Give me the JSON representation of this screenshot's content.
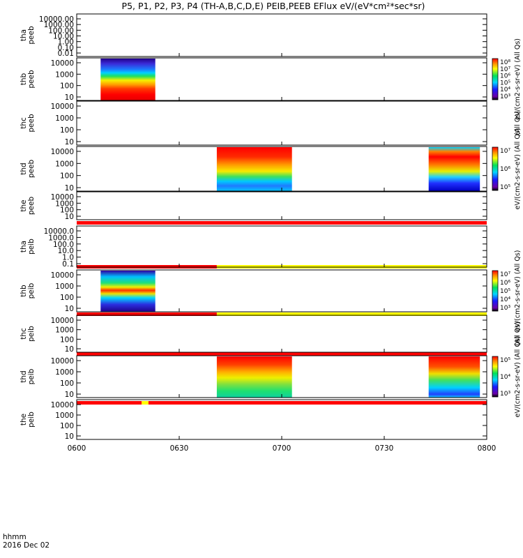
{
  "title": "P5, P1, P2, P3, P4 (TH-A,B,C,D,E) PEIB,PEEB EFlux eV/(eV*cm²*sec*sr)",
  "footer": {
    "time_label": "hhmm",
    "date_label": "2016 Dec 02"
  },
  "x_ticks": [
    "0600",
    "0630",
    "0700",
    "0730",
    "0800"
  ],
  "chart_data": {
    "type": "heatmap",
    "title": "P5, P1, P2, P3, P4 (TH-A,B,C,D,E) PEIB,PEEB EFlux eV/(eV*cm²*sec*sr)",
    "x_range": [
      "06:00",
      "08:00"
    ],
    "x_ticks": [
      "0600",
      "0630",
      "0700",
      "0730",
      "0800"
    ],
    "panels": [
      {
        "id": "tha_peeb",
        "label": [
          "tha",
          "peeb"
        ],
        "y_log": true,
        "y_range": [
          0.01,
          30000
        ],
        "y_ticks": [
          "10000.00",
          "1000.00",
          "100.00",
          "10.00",
          "1.00",
          "0.10",
          "0.01"
        ],
        "data_blocks": []
      },
      {
        "id": "thb_peeb",
        "label": [
          "thb",
          "peeb"
        ],
        "y_log": true,
        "y_range": [
          7,
          30000
        ],
        "y_ticks": [
          "10000",
          "1000",
          "100",
          "10"
        ],
        "data_blocks": [
          {
            "start": "06:07",
            "end": "06:23",
            "profile": "thb"
          }
        ],
        "colorbar": {
          "ticks": [
            "10⁸",
            "10⁷",
            "10⁶",
            "10⁵",
            "10⁴",
            "10³"
          ],
          "label": "eV/(cm2-s-sr-eV) (All Qs)"
        }
      },
      {
        "id": "thc_peeb",
        "label": [
          "thc",
          "peeb"
        ],
        "y_log": true,
        "y_range": [
          7,
          30000
        ],
        "y_ticks": [
          "10000",
          "1000",
          "100",
          "10"
        ],
        "data_blocks": [],
        "bar_label": "(All Qs)"
      },
      {
        "id": "thd_peeb",
        "label": [
          "thd",
          "peeb"
        ],
        "y_log": true,
        "y_range": [
          5,
          30000
        ],
        "y_ticks": [
          "10000",
          "1000",
          "100",
          "10"
        ],
        "data_blocks": [
          {
            "start": "06:41",
            "end": "07:03",
            "profile": "thd"
          },
          {
            "start": "07:43",
            "end": "07:58",
            "profile": "thd2"
          }
        ],
        "colorbar": {
          "ticks": [
            "10⁷",
            "10⁶",
            "10⁵"
          ],
          "label": "eV/(cm2-s-sr-eV) (All Qs)"
        }
      },
      {
        "id": "the_peeb",
        "label": [
          "the",
          "peeb"
        ],
        "y_log": true,
        "y_range": [
          5,
          30000
        ],
        "y_ticks": [
          "10000",
          "1000",
          "100",
          "10"
        ],
        "data_blocks": [],
        "status_bar": {
          "segments": [
            {
              "start": "06:00",
              "end": "08:00",
              "color": "#ff0000"
            }
          ]
        }
      },
      {
        "id": "tha_peib",
        "label": [
          "tha",
          "peib"
        ],
        "y_log": true,
        "y_range": [
          0.1,
          30000
        ],
        "y_ticks": [
          "10000.0",
          "1000.0",
          "100.0",
          "10.0",
          "1.0",
          "0.1"
        ],
        "data_blocks": [],
        "status_bar": {
          "segments": [
            {
              "start": "06:00",
              "end": "06:41",
              "color": "#ff0000"
            },
            {
              "start": "06:41",
              "end": "08:00",
              "color": "#ffff00"
            }
          ]
        }
      },
      {
        "id": "thb_peib",
        "label": [
          "thb",
          "peib"
        ],
        "y_log": true,
        "y_range": [
          5,
          30000
        ],
        "y_ticks": [
          "10000",
          "1000",
          "100",
          "10"
        ],
        "data_blocks": [
          {
            "start": "06:07",
            "end": "06:23",
            "profile": "thbi"
          }
        ],
        "colorbar": {
          "ticks": [
            "10⁷",
            "10⁶",
            "10⁵",
            "10⁴",
            "10³"
          ],
          "label": "eV/(cm2-s-sr-eV) (All Qs)"
        },
        "status_bar": {
          "segments": [
            {
              "start": "06:00",
              "end": "06:41",
              "color": "#ff0000"
            },
            {
              "start": "06:41",
              "end": "08:00",
              "color": "#ffff00"
            }
          ]
        }
      },
      {
        "id": "thc_peib",
        "label": [
          "thc",
          "peib"
        ],
        "y_log": true,
        "y_range": [
          5,
          30000
        ],
        "y_ticks": [
          "10000",
          "1000",
          "100",
          "10"
        ],
        "data_blocks": [],
        "bar_label": "(All Qs)",
        "status_bar": {
          "segments": [
            {
              "start": "06:00",
              "end": "08:00",
              "color": "#ff0000"
            }
          ]
        }
      },
      {
        "id": "thd_peib",
        "label": [
          "thd",
          "peib"
        ],
        "y_log": true,
        "y_range": [
          5,
          30000
        ],
        "y_ticks": [
          "10000",
          "1000",
          "100",
          "10"
        ],
        "data_blocks": [
          {
            "start": "06:41",
            "end": "07:03",
            "profile": "thdi"
          },
          {
            "start": "07:43",
            "end": "07:58",
            "profile": "thdi2"
          }
        ],
        "colorbar": {
          "ticks": [
            "10⁵",
            "10⁴",
            "10³"
          ],
          "label": "eV/(cm2-s-sr-eV) (All Qs)"
        },
        "status_bar": {
          "segments": [
            {
              "start": "06:00",
              "end": "06:19",
              "color": "#ff0000"
            },
            {
              "start": "06:19",
              "end": "06:21",
              "color": "#ffff00"
            },
            {
              "start": "06:21",
              "end": "08:00",
              "color": "#ff0000"
            }
          ]
        }
      },
      {
        "id": "the_peib",
        "label": [
          "the",
          "peib"
        ],
        "y_log": true,
        "y_range": [
          5,
          30000
        ],
        "y_ticks": [
          "10000",
          "1000",
          "100",
          "10"
        ],
        "data_blocks": []
      }
    ],
    "colorscale": "rainbow (purple-blue-cyan-green-yellow-red)"
  }
}
